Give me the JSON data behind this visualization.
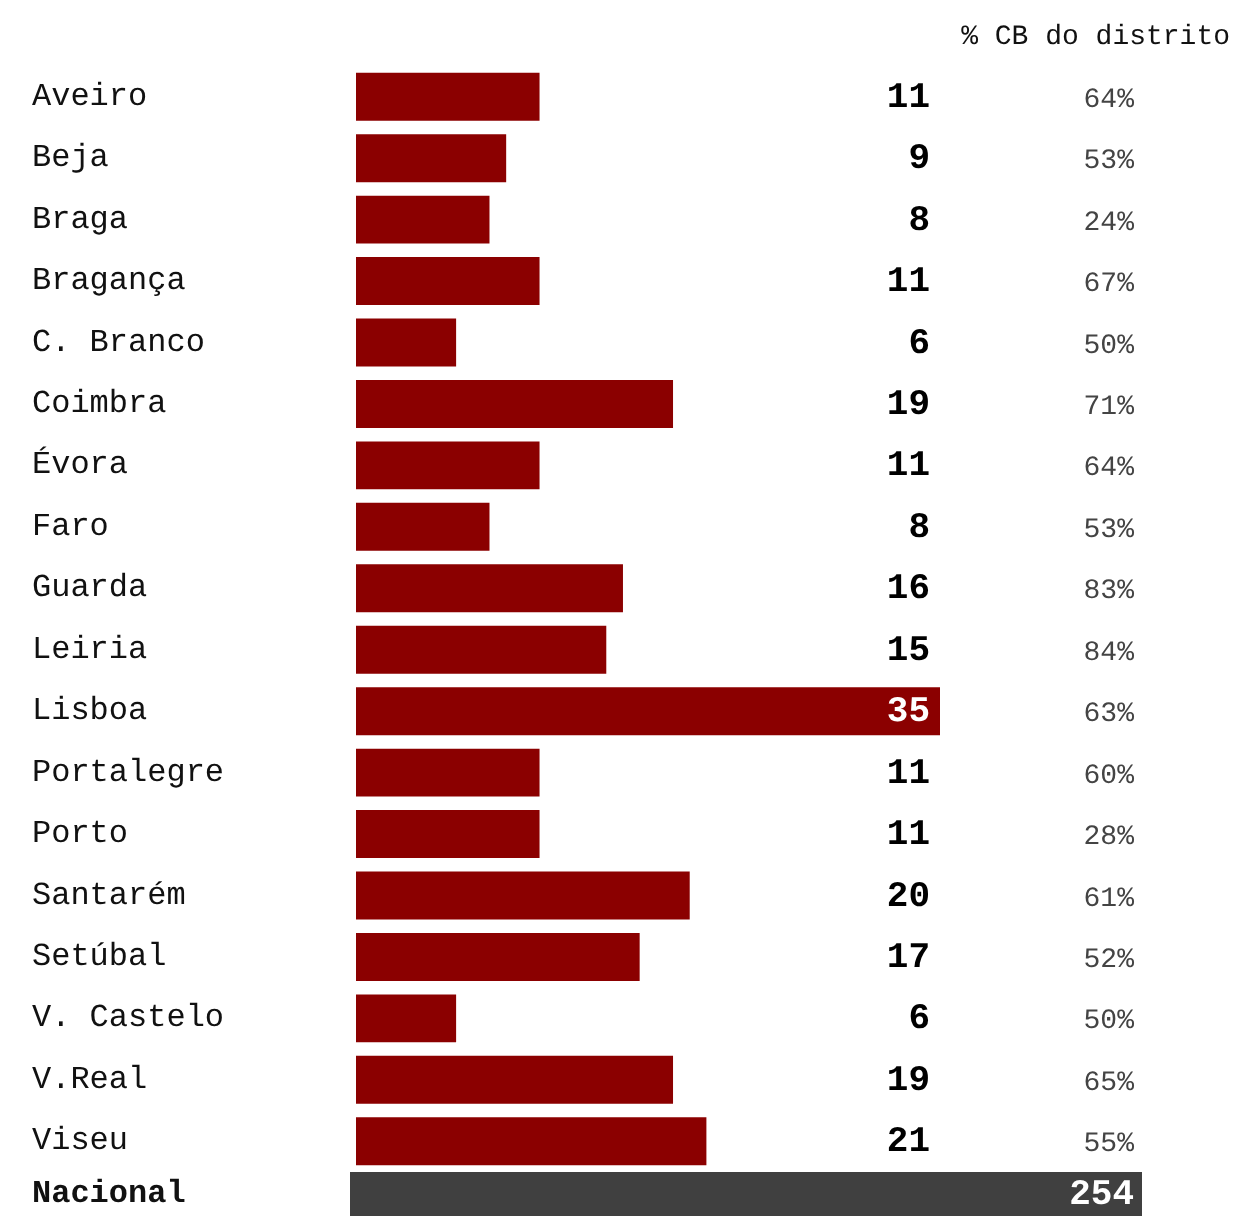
{
  "chart_data": {
    "type": "bar",
    "orientation": "horizontal",
    "data_labels": true,
    "categories": [
      "Aveiro",
      "Beja",
      "Braga",
      "Bragança",
      "C. Branco",
      "Coimbra",
      "Évora",
      "Faro",
      "Guarda",
      "Leiria",
      "Lisboa",
      "Portalegre",
      "Porto",
      "Santarém",
      "Setúbal",
      "V. Castelo",
      "V.Real",
      "Viseu"
    ],
    "series": [
      {
        "color": "#8b0000",
        "values": [
          11,
          9,
          8,
          11,
          6,
          19,
          11,
          8,
          16,
          15,
          35,
          11,
          11,
          20,
          17,
          6,
          19,
          21
        ]
      }
    ],
    "annotations": [
      "% CB do distrito",
      "Nacional",
      "254",
      "64%",
      "53%",
      "24%",
      "67%",
      "50%",
      "71%",
      "64%",
      "53%",
      "83%",
      "84%",
      "63%",
      "60%",
      "28%",
      "61%",
      "52%",
      "50%",
      "65%",
      "55%"
    ]
  }
}
